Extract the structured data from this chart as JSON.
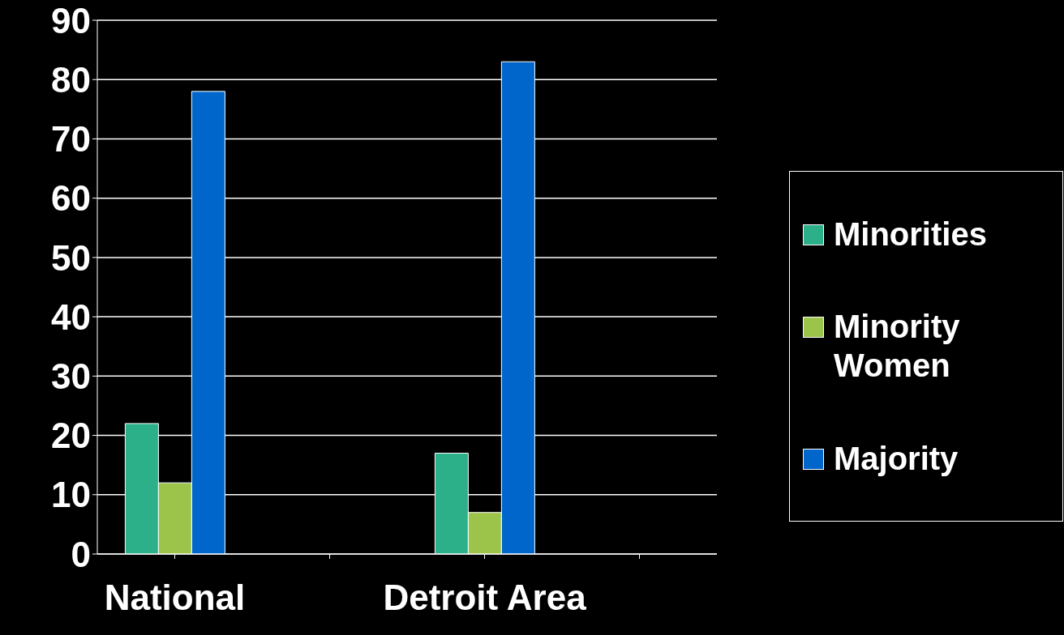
{
  "chart_data": {
    "type": "bar",
    "categories": [
      "National",
      null,
      "Detroit Area",
      null
    ],
    "series": [
      {
        "name": "Minorities",
        "color": "#2bb08a",
        "values": [
          22,
          null,
          17,
          null
        ]
      },
      {
        "name": "Minority Women",
        "color": "#9cc34a",
        "values": [
          12,
          null,
          7,
          null
        ]
      },
      {
        "name": "Majority",
        "color": "#0066cc",
        "values": [
          78,
          null,
          83,
          null
        ]
      }
    ],
    "ylim": [
      0,
      90
    ],
    "yticks": [
      0,
      10,
      20,
      30,
      40,
      50,
      60,
      70,
      80,
      90
    ],
    "grid": "y",
    "legend": "right"
  }
}
